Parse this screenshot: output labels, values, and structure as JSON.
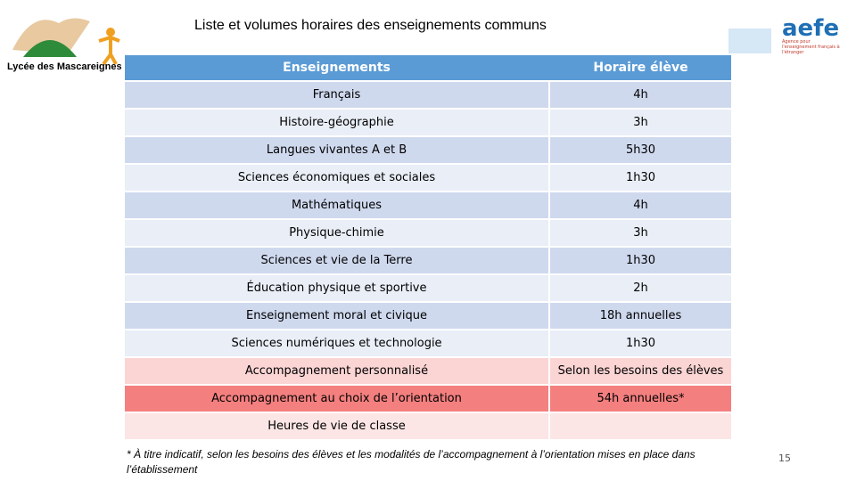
{
  "header": {
    "title": "Liste et volumes horaires des enseignements communs",
    "logo_left": "Lycée des Mascareignes",
    "logo_right": "aefe",
    "logo_right_subtitle": "Agence pour l'enseignement français à l'étranger"
  },
  "table": {
    "columns": [
      "Enseignements",
      "Horaire élève"
    ],
    "rows": [
      [
        "Français",
        "4h"
      ],
      [
        "Histoire-géographie",
        "3h"
      ],
      [
        "Langues vivantes A et B",
        "5h30"
      ],
      [
        "Sciences économiques et sociales",
        "1h30"
      ],
      [
        "Mathématiques",
        "4h"
      ],
      [
        "Physique-chimie",
        "3h"
      ],
      [
        "Sciences et vie de la Terre",
        "1h30"
      ],
      [
        "Éducation physique et sportive",
        "2h"
      ],
      [
        "Enseignement moral et civique",
        "18h annuelles"
      ],
      [
        "Sciences numériques et technologie",
        "1h30"
      ],
      [
        "Accompagnement personnalisé",
        "Selon les besoins des élèves"
      ],
      [
        "Accompagnement au choix de l’orientation",
        "54h annuelles*"
      ],
      [
        "Heures de vie de classe"
      ]
    ]
  },
  "footnote": "* À titre indicatif, selon les besoins des élèves et les modalités de l’accompagnement à l’orientation mises en place dans l’établissement",
  "page_number": "15"
}
